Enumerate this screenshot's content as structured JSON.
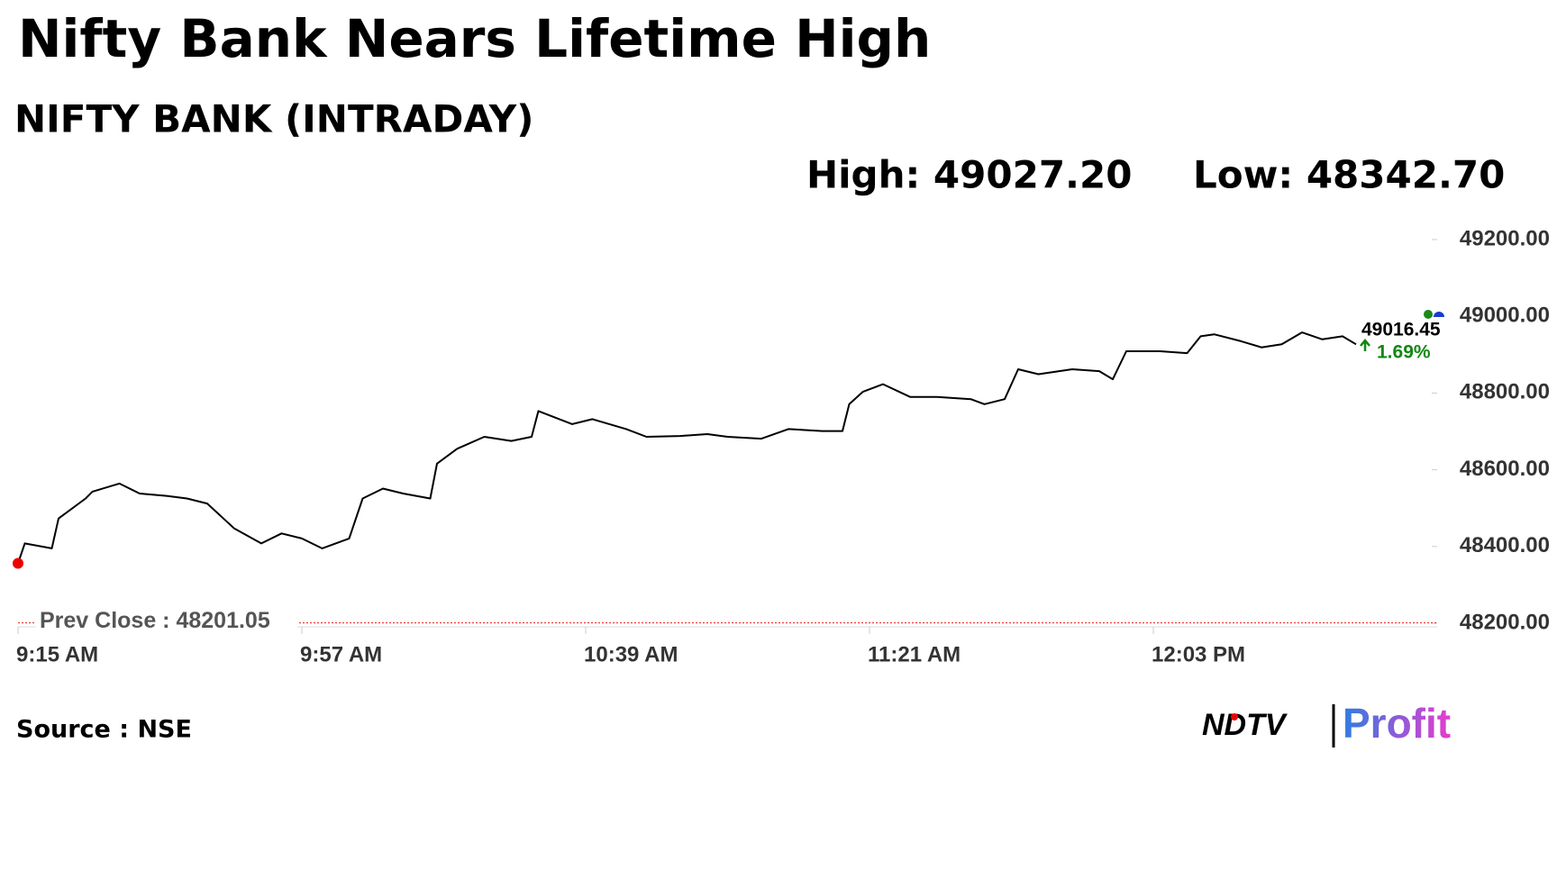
{
  "chart_data": {
    "type": "line",
    "title": "Nifty Bank Nears Lifetime High",
    "subtitle": "NIFTY BANK (INTRADAY)",
    "high_label": "High: 49027.20",
    "low_label": "Low: 48342.70",
    "prev_close_label": "Prev Close : 48201.05",
    "prev_close": 48201.05,
    "last_price": "49016.45",
    "change": "1.69%",
    "source": "Source : NSE",
    "logo": [
      "NDTV",
      "Profit"
    ],
    "x": [
      555,
      556,
      560,
      561,
      565,
      566,
      570,
      573,
      577,
      580,
      583,
      587,
      591,
      594,
      597,
      600,
      604,
      606,
      609,
      612,
      616,
      617,
      620,
      624,
      628,
      631,
      632,
      637,
      640,
      645,
      648,
      653,
      657,
      660,
      665,
      669,
      674,
      677,
      678,
      680,
      683,
      687,
      691,
      696,
      698,
      701,
      703,
      706,
      711,
      715,
      717,
      719,
      724,
      728,
      730,
      732,
      736,
      739,
      742,
      745,
      748,
      751,
      753
    ],
    "series": [
      {
        "name": "NIFTY BANK",
        "color": "#000000",
        "values": [
          48356,
          48408,
          48395,
          48473,
          48525,
          48543,
          48564,
          48538,
          48532,
          48525,
          48512,
          48447,
          48408,
          48434,
          48421,
          48395,
          48421,
          48525,
          48551,
          48538,
          48525,
          48616,
          48655,
          48686,
          48675,
          48686,
          48753,
          48719,
          48732,
          48706,
          48686,
          48688,
          48693,
          48686,
          48681,
          48706,
          48701,
          48701,
          48771,
          48803,
          48823,
          48790,
          48790,
          48784,
          48771,
          48784,
          48862,
          48849,
          48862,
          48857,
          48836,
          48909,
          48909,
          48904,
          48948,
          48953,
          48935,
          48919,
          48927,
          48958,
          48940,
          48948,
          48927
        ]
      }
    ],
    "xlim": [
      555,
      765
    ],
    "ylim": [
      48200,
      49200
    ],
    "xticks": [
      {
        "value": 555,
        "label": "9:15 AM"
      },
      {
        "value": 597,
        "label": "9:57 AM"
      },
      {
        "value": 639,
        "label": "10:39 AM"
      },
      {
        "value": 681,
        "label": "11:21 AM"
      },
      {
        "value": 723,
        "label": "12:03 PM"
      }
    ],
    "yticks": [
      {
        "value": 48200,
        "label": "48200.00"
      },
      {
        "value": 48400,
        "label": "48400.00"
      },
      {
        "value": 48600,
        "label": "48600.00"
      },
      {
        "value": 48800,
        "label": "48800.00"
      },
      {
        "value": 49000,
        "label": "49000.00"
      },
      {
        "value": 49200,
        "label": "49200.00"
      }
    ],
    "grid": false
  }
}
